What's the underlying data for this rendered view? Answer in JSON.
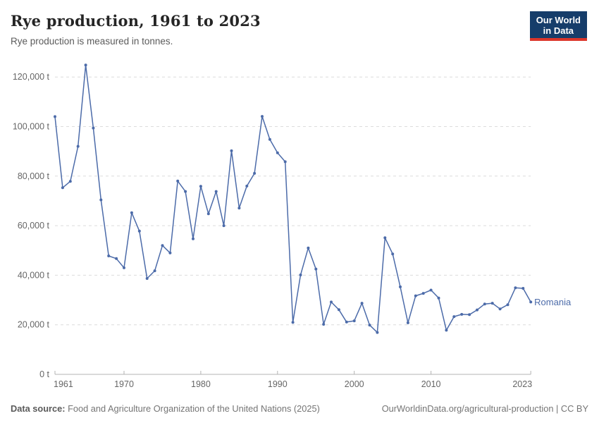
{
  "header": {
    "title": "Rye production, 1961 to 2023",
    "subtitle": "Rye production is measured in tonnes.",
    "logo": {
      "line1": "Our World",
      "line2": "in Data"
    }
  },
  "chart_data": {
    "type": "line",
    "title": "Rye production, 1961 to 2023",
    "ylabel": "tonnes",
    "xlabel": "",
    "grid": "dashed-horizontal",
    "legend_position": "end-of-line-label",
    "xlim": [
      1961,
      2023
    ],
    "ylim": [
      0,
      126000
    ],
    "x_ticks": [
      1961,
      1970,
      1980,
      1990,
      2000,
      2010,
      2023
    ],
    "y_ticks": [
      0,
      20000,
      40000,
      60000,
      80000,
      100000,
      120000
    ],
    "y_tick_suffix": " t",
    "series": [
      {
        "name": "Romania",
        "color": "#4C6BA9",
        "x": [
          1961,
          1962,
          1963,
          1964,
          1965,
          1966,
          1967,
          1968,
          1969,
          1970,
          1971,
          1972,
          1973,
          1974,
          1975,
          1976,
          1977,
          1978,
          1979,
          1980,
          1981,
          1982,
          1983,
          1984,
          1985,
          1986,
          1987,
          1988,
          1989,
          1990,
          1991,
          1992,
          1993,
          1994,
          1995,
          1996,
          1997,
          1998,
          1999,
          2000,
          2001,
          2002,
          2003,
          2004,
          2005,
          2006,
          2007,
          2008,
          2009,
          2010,
          2011,
          2012,
          2013,
          2014,
          2015,
          2016,
          2017,
          2018,
          2019,
          2020,
          2021,
          2022,
          2023
        ],
        "values": [
          104000,
          75300,
          77900,
          92000,
          124800,
          99400,
          70400,
          47800,
          46700,
          43000,
          65200,
          57800,
          38700,
          41800,
          52000,
          49000,
          78000,
          73800,
          54700,
          75900,
          64800,
          73800,
          60000,
          90200,
          67100,
          76000,
          81100,
          104100,
          94800,
          89400,
          85800,
          21000,
          40100,
          51000,
          42500,
          20200,
          29200,
          26100,
          21100,
          21600,
          28700,
          19900,
          16900,
          55100,
          48600,
          35300,
          20800,
          31700,
          32700,
          34000,
          30800,
          17800,
          23300,
          24200,
          24100,
          26000,
          28400,
          28700,
          26400,
          28100,
          34900,
          34700,
          29200
        ]
      }
    ]
  },
  "footer": {
    "source_label": "Data source:",
    "source_text": " Food and Agriculture Organization of the United Nations (2025)",
    "credit": "OurWorldinData.org/agricultural-production | CC BY"
  },
  "colors": {
    "series_line": "#4C6BA9",
    "gridline": "#dcdcdc",
    "axis": "#b3b3b3",
    "tick_label": "#666666",
    "logo_navy": "#163d6a",
    "logo_red": "#dc362b"
  }
}
